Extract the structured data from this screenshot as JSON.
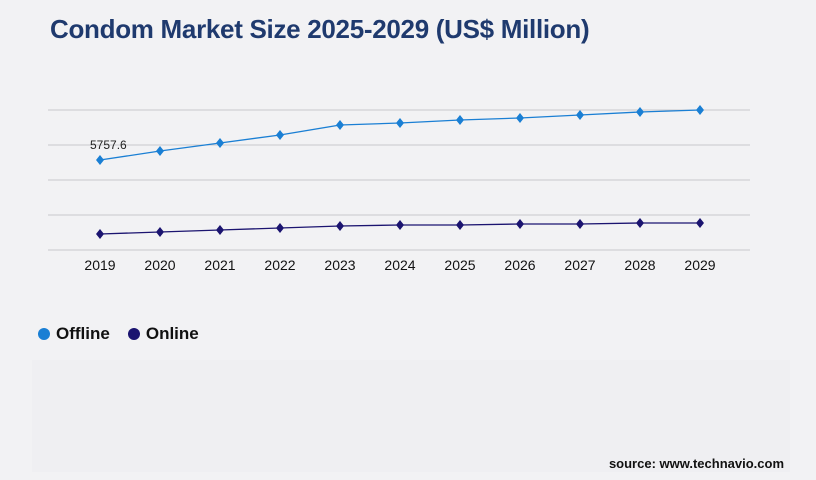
{
  "chart_data": {
    "type": "line",
    "title": "Condom Market Size 2025-2029 (US$ Million)",
    "xlabel": "",
    "ylabel": "",
    "x": [
      "2019",
      "2020",
      "2021",
      "2022",
      "2023",
      "2024",
      "2025",
      "2026",
      "2027",
      "2028",
      "2029"
    ],
    "ylim": [
      0,
      8960
    ],
    "grid": true,
    "legend_position": "bottom-left",
    "series": [
      {
        "name": "Offline",
        "color": "#1a7fd4",
        "values": [
          5757.6,
          6336,
          6848,
          7360,
          8000,
          8128,
          8320,
          8448,
          8640,
          8832,
          8960
        ]
      },
      {
        "name": "Online",
        "color": "#1b1470",
        "values": [
          1024,
          1152,
          1280,
          1408,
          1536,
          1600,
          1600,
          1664,
          1664,
          1728,
          1728
        ]
      }
    ],
    "annotations": [
      {
        "series": "Offline",
        "x": "2019",
        "text": "5757.6"
      }
    ]
  },
  "source": "source: www.technavio.com"
}
